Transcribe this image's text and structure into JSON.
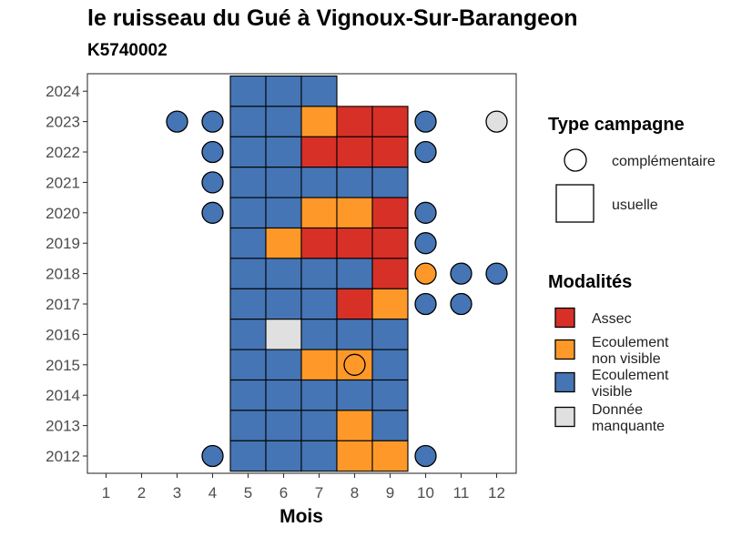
{
  "colors": {
    "Assec": "#d73027",
    "Ecoulement non visible": "#fe9929",
    "Ecoulement visible": "#4575b4",
    "Donnée manquante": "#e0e0e0"
  },
  "chart_data": {
    "type": "heatmap",
    "title": "le ruisseau du Gué à Vignoux-Sur-Barangeon",
    "subtitle": "K5740002",
    "xlabel": "Mois",
    "ylabel": "",
    "x_ticks": [
      "1",
      "2",
      "3",
      "4",
      "5",
      "6",
      "7",
      "8",
      "9",
      "10",
      "11",
      "12"
    ],
    "y_ticks": [
      "2012",
      "2013",
      "2014",
      "2015",
      "2016",
      "2017",
      "2018",
      "2019",
      "2020",
      "2021",
      "2022",
      "2023",
      "2024"
    ],
    "legend_shape": {
      "title": "Type campagne",
      "items": [
        {
          "key": "complementaire",
          "label": "complémentaire"
        },
        {
          "key": "usuelle",
          "label": "usuelle"
        }
      ]
    },
    "legend_fill": {
      "title": "Modalités",
      "items": [
        {
          "key": "Assec",
          "lines": [
            "Assec"
          ]
        },
        {
          "key": "Ecoulement non visible",
          "lines": [
            "Ecoulement",
            "non visible"
          ]
        },
        {
          "key": "Ecoulement visible",
          "lines": [
            "Ecoulement",
            "visible"
          ]
        },
        {
          "key": "Donnée manquante",
          "lines": [
            "Donnée",
            "manquante"
          ]
        }
      ]
    },
    "usuelle": [
      {
        "year": 2024,
        "month": 5,
        "value": "Ecoulement visible"
      },
      {
        "year": 2024,
        "month": 6,
        "value": "Ecoulement visible"
      },
      {
        "year": 2024,
        "month": 7,
        "value": "Ecoulement visible"
      },
      {
        "year": 2023,
        "month": 5,
        "value": "Ecoulement visible"
      },
      {
        "year": 2023,
        "month": 6,
        "value": "Ecoulement visible"
      },
      {
        "year": 2023,
        "month": 7,
        "value": "Ecoulement non visible"
      },
      {
        "year": 2023,
        "month": 8,
        "value": "Assec"
      },
      {
        "year": 2023,
        "month": 9,
        "value": "Assec"
      },
      {
        "year": 2022,
        "month": 5,
        "value": "Ecoulement visible"
      },
      {
        "year": 2022,
        "month": 6,
        "value": "Ecoulement visible"
      },
      {
        "year": 2022,
        "month": 7,
        "value": "Assec"
      },
      {
        "year": 2022,
        "month": 8,
        "value": "Assec"
      },
      {
        "year": 2022,
        "month": 9,
        "value": "Assec"
      },
      {
        "year": 2021,
        "month": 5,
        "value": "Ecoulement visible"
      },
      {
        "year": 2021,
        "month": 6,
        "value": "Ecoulement visible"
      },
      {
        "year": 2021,
        "month": 7,
        "value": "Ecoulement visible"
      },
      {
        "year": 2021,
        "month": 8,
        "value": "Ecoulement visible"
      },
      {
        "year": 2021,
        "month": 9,
        "value": "Ecoulement visible"
      },
      {
        "year": 2020,
        "month": 5,
        "value": "Ecoulement visible"
      },
      {
        "year": 2020,
        "month": 6,
        "value": "Ecoulement visible"
      },
      {
        "year": 2020,
        "month": 7,
        "value": "Ecoulement non visible"
      },
      {
        "year": 2020,
        "month": 8,
        "value": "Ecoulement non visible"
      },
      {
        "year": 2020,
        "month": 9,
        "value": "Assec"
      },
      {
        "year": 2019,
        "month": 5,
        "value": "Ecoulement visible"
      },
      {
        "year": 2019,
        "month": 6,
        "value": "Ecoulement non visible"
      },
      {
        "year": 2019,
        "month": 7,
        "value": "Assec"
      },
      {
        "year": 2019,
        "month": 8,
        "value": "Assec"
      },
      {
        "year": 2019,
        "month": 9,
        "value": "Assec"
      },
      {
        "year": 2018,
        "month": 5,
        "value": "Ecoulement visible"
      },
      {
        "year": 2018,
        "month": 6,
        "value": "Ecoulement visible"
      },
      {
        "year": 2018,
        "month": 7,
        "value": "Ecoulement visible"
      },
      {
        "year": 2018,
        "month": 8,
        "value": "Ecoulement visible"
      },
      {
        "year": 2018,
        "month": 9,
        "value": "Assec"
      },
      {
        "year": 2017,
        "month": 5,
        "value": "Ecoulement visible"
      },
      {
        "year": 2017,
        "month": 6,
        "value": "Ecoulement visible"
      },
      {
        "year": 2017,
        "month": 7,
        "value": "Ecoulement visible"
      },
      {
        "year": 2017,
        "month": 8,
        "value": "Assec"
      },
      {
        "year": 2017,
        "month": 9,
        "value": "Ecoulement non visible"
      },
      {
        "year": 2016,
        "month": 5,
        "value": "Ecoulement visible"
      },
      {
        "year": 2016,
        "month": 6,
        "value": "Donnée manquante"
      },
      {
        "year": 2016,
        "month": 7,
        "value": "Ecoulement visible"
      },
      {
        "year": 2016,
        "month": 8,
        "value": "Ecoulement visible"
      },
      {
        "year": 2016,
        "month": 9,
        "value": "Ecoulement visible"
      },
      {
        "year": 2015,
        "month": 5,
        "value": "Ecoulement visible"
      },
      {
        "year": 2015,
        "month": 6,
        "value": "Ecoulement visible"
      },
      {
        "year": 2015,
        "month": 7,
        "value": "Ecoulement non visible"
      },
      {
        "year": 2015,
        "month": 8,
        "value": "Ecoulement non visible"
      },
      {
        "year": 2015,
        "month": 9,
        "value": "Ecoulement visible"
      },
      {
        "year": 2014,
        "month": 5,
        "value": "Ecoulement visible"
      },
      {
        "year": 2014,
        "month": 6,
        "value": "Ecoulement visible"
      },
      {
        "year": 2014,
        "month": 7,
        "value": "Ecoulement visible"
      },
      {
        "year": 2014,
        "month": 8,
        "value": "Ecoulement visible"
      },
      {
        "year": 2014,
        "month": 9,
        "value": "Ecoulement visible"
      },
      {
        "year": 2013,
        "month": 5,
        "value": "Ecoulement visible"
      },
      {
        "year": 2013,
        "month": 6,
        "value": "Ecoulement visible"
      },
      {
        "year": 2013,
        "month": 7,
        "value": "Ecoulement visible"
      },
      {
        "year": 2013,
        "month": 8,
        "value": "Ecoulement non visible"
      },
      {
        "year": 2013,
        "month": 9,
        "value": "Ecoulement visible"
      },
      {
        "year": 2012,
        "month": 5,
        "value": "Ecoulement visible"
      },
      {
        "year": 2012,
        "month": 6,
        "value": "Ecoulement visible"
      },
      {
        "year": 2012,
        "month": 7,
        "value": "Ecoulement visible"
      },
      {
        "year": 2012,
        "month": 8,
        "value": "Ecoulement non visible"
      },
      {
        "year": 2012,
        "month": 9,
        "value": "Ecoulement non visible"
      }
    ],
    "complementaire": [
      {
        "year": 2023,
        "month": 3,
        "value": "Ecoulement visible"
      },
      {
        "year": 2023,
        "month": 4,
        "value": "Ecoulement visible"
      },
      {
        "year": 2023,
        "month": 10,
        "value": "Ecoulement visible"
      },
      {
        "year": 2023,
        "month": 12,
        "value": "Donnée manquante"
      },
      {
        "year": 2022,
        "month": 4,
        "value": "Ecoulement visible"
      },
      {
        "year": 2022,
        "month": 10,
        "value": "Ecoulement visible"
      },
      {
        "year": 2021,
        "month": 4,
        "value": "Ecoulement visible"
      },
      {
        "year": 2020,
        "month": 4,
        "value": "Ecoulement visible"
      },
      {
        "year": 2020,
        "month": 10,
        "value": "Ecoulement visible"
      },
      {
        "year": 2019,
        "month": 10,
        "value": "Ecoulement visible"
      },
      {
        "year": 2018,
        "month": 10,
        "value": "Ecoulement non visible"
      },
      {
        "year": 2018,
        "month": 11,
        "value": "Ecoulement visible"
      },
      {
        "year": 2018,
        "month": 12,
        "value": "Ecoulement visible"
      },
      {
        "year": 2017,
        "month": 10,
        "value": "Ecoulement visible"
      },
      {
        "year": 2017,
        "month": 11,
        "value": "Ecoulement visible"
      },
      {
        "year": 2015,
        "month": 8,
        "value": "Ecoulement non visible"
      },
      {
        "year": 2012,
        "month": 4,
        "value": "Ecoulement visible"
      },
      {
        "year": 2012,
        "month": 10,
        "value": "Ecoulement visible"
      }
    ]
  }
}
